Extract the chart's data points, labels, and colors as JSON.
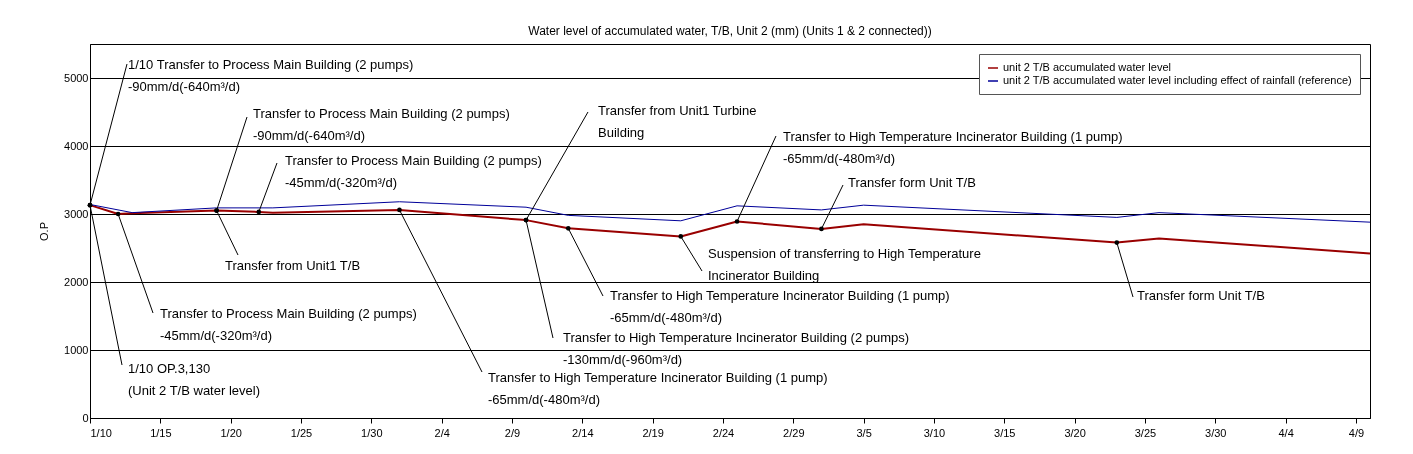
{
  "chart_data": {
    "type": "line",
    "title": "Water level of accumulated water, T/B, Unit 2 (mm) (Units 1 & 2 connected))",
    "ylabel": "O.P",
    "xlim": [
      "--01-10",
      "--04-10"
    ],
    "xticks": [
      {
        "value": "--01-10",
        "label": "1/10"
      },
      {
        "value": "--01-15",
        "label": "1/15"
      },
      {
        "value": "--01-20",
        "label": "1/20"
      },
      {
        "value": "--01-25",
        "label": "1/25"
      },
      {
        "value": "--01-30",
        "label": "1/30"
      },
      {
        "value": "--02-04",
        "label": "2/4"
      },
      {
        "value": "--02-09",
        "label": "2/9"
      },
      {
        "value": "--02-14",
        "label": "2/14"
      },
      {
        "value": "--02-19",
        "label": "2/19"
      },
      {
        "value": "--02-24",
        "label": "2/24"
      },
      {
        "value": "--02-29",
        "label": "2/29"
      },
      {
        "value": "--03-05",
        "label": "3/5"
      },
      {
        "value": "--03-10",
        "label": "3/10"
      },
      {
        "value": "--03-15",
        "label": "3/15"
      },
      {
        "value": "--03-20",
        "label": "3/20"
      },
      {
        "value": "--03-25",
        "label": "3/25"
      },
      {
        "value": "--03-30",
        "label": "3/30"
      },
      {
        "value": "--04-04",
        "label": "4/4"
      },
      {
        "value": "--04-09",
        "label": "4/9"
      }
    ],
    "ylim": [
      0,
      5500
    ],
    "yticks": [
      0,
      1000,
      2000,
      3000,
      4000,
      5000
    ],
    "grid": "y",
    "legend": "top right",
    "series": [
      {
        "name": "unit 2 T/B accumulated water level",
        "color": "#990000",
        "x": [
          "--01-10",
          "--01-12",
          "--01-13",
          "--01-19",
          "--01-22",
          "--01-23",
          "--02-01",
          "--02-10",
          "--02-13",
          "--02-21",
          "--02-25",
          "--03-02",
          "--03-05",
          "--03-23",
          "--03-26",
          "--04-10"
        ],
        "values": [
          3130,
          3000,
          3010,
          3050,
          3030,
          3020,
          3060,
          2910,
          2790,
          2670,
          2890,
          2780,
          2850,
          2580,
          2640,
          2420
        ]
      },
      {
        "name": "unit 2 T/B accumulated water level including effect of rainfall (reference)",
        "color": "#000099",
        "x": [
          "--01-10",
          "--01-13",
          "--01-19",
          "--01-23",
          "--02-01",
          "--02-10",
          "--02-13",
          "--02-21",
          "--02-25",
          "--03-02",
          "--03-05",
          "--03-23",
          "--03-26",
          "--04-10"
        ],
        "values": [
          3140,
          3020,
          3090,
          3090,
          3180,
          3100,
          2980,
          2900,
          3120,
          3060,
          3130,
          2950,
          3020,
          2880
        ]
      }
    ],
    "annotations": [
      {
        "text": "1/10  Transfer to Process Main Building (2 pumps)\n-90mm/d(-640m³/d)",
        "x": "--01-10",
        "y": 3130
      },
      {
        "text": "Transfer to Process Main Building (2 pumps)\n-90mm/d(-640m³/d)",
        "x": "--01-19",
        "y": 3050
      },
      {
        "text": "Transfer to Process Main Building (2 pumps)\n-45mm/d(-320m³/d)",
        "x": "--01-22",
        "y": 3030
      },
      {
        "text": "Transfer from Unit1 T/B",
        "x": "--01-19",
        "y": 3050
      },
      {
        "text": "Transfer to Process Main Building (2 pumps)\n-45mm/d(-320m³/d)",
        "x": "--01-12",
        "y": 3000
      },
      {
        "text": "1/10  OP.3,130\n(Unit 2 T/B water level)",
        "x": "--01-10",
        "y": 3130
      },
      {
        "text": "Transfer to High Temperature Incinerator Building (1 pump)\n-65mm/d(-480m³/d)",
        "x": "--02-01",
        "y": 3060
      },
      {
        "text": "Transfer from Unit1 Turbine\nBuilding",
        "x": "--02-10",
        "y": 2910
      },
      {
        "text": "Transfer to High Temperature Incinerator Building (2 pumps)\n-130mm/d(-960m³/d)",
        "x": "--02-10",
        "y": 2910
      },
      {
        "text": "Transfer to High Temperature Incinerator Building (1 pump)\n-65mm/d(-480m³/d)",
        "x": "--02-13",
        "y": 2790
      },
      {
        "text": "Suspension of transferring to High Temperature\nIncinerator Building",
        "x": "--02-21",
        "y": 2670
      },
      {
        "text": "Transfer to High Temperature Incinerator Building (1 pump)\n-65mm/d(-480m³/d)",
        "x": "--02-25",
        "y": 2890
      },
      {
        "text": "Transfer form Unit T/B",
        "x": "--03-02",
        "y": 2780
      },
      {
        "text": "Transfer form Unit T/B",
        "x": "--03-23",
        "y": 2580
      }
    ]
  }
}
